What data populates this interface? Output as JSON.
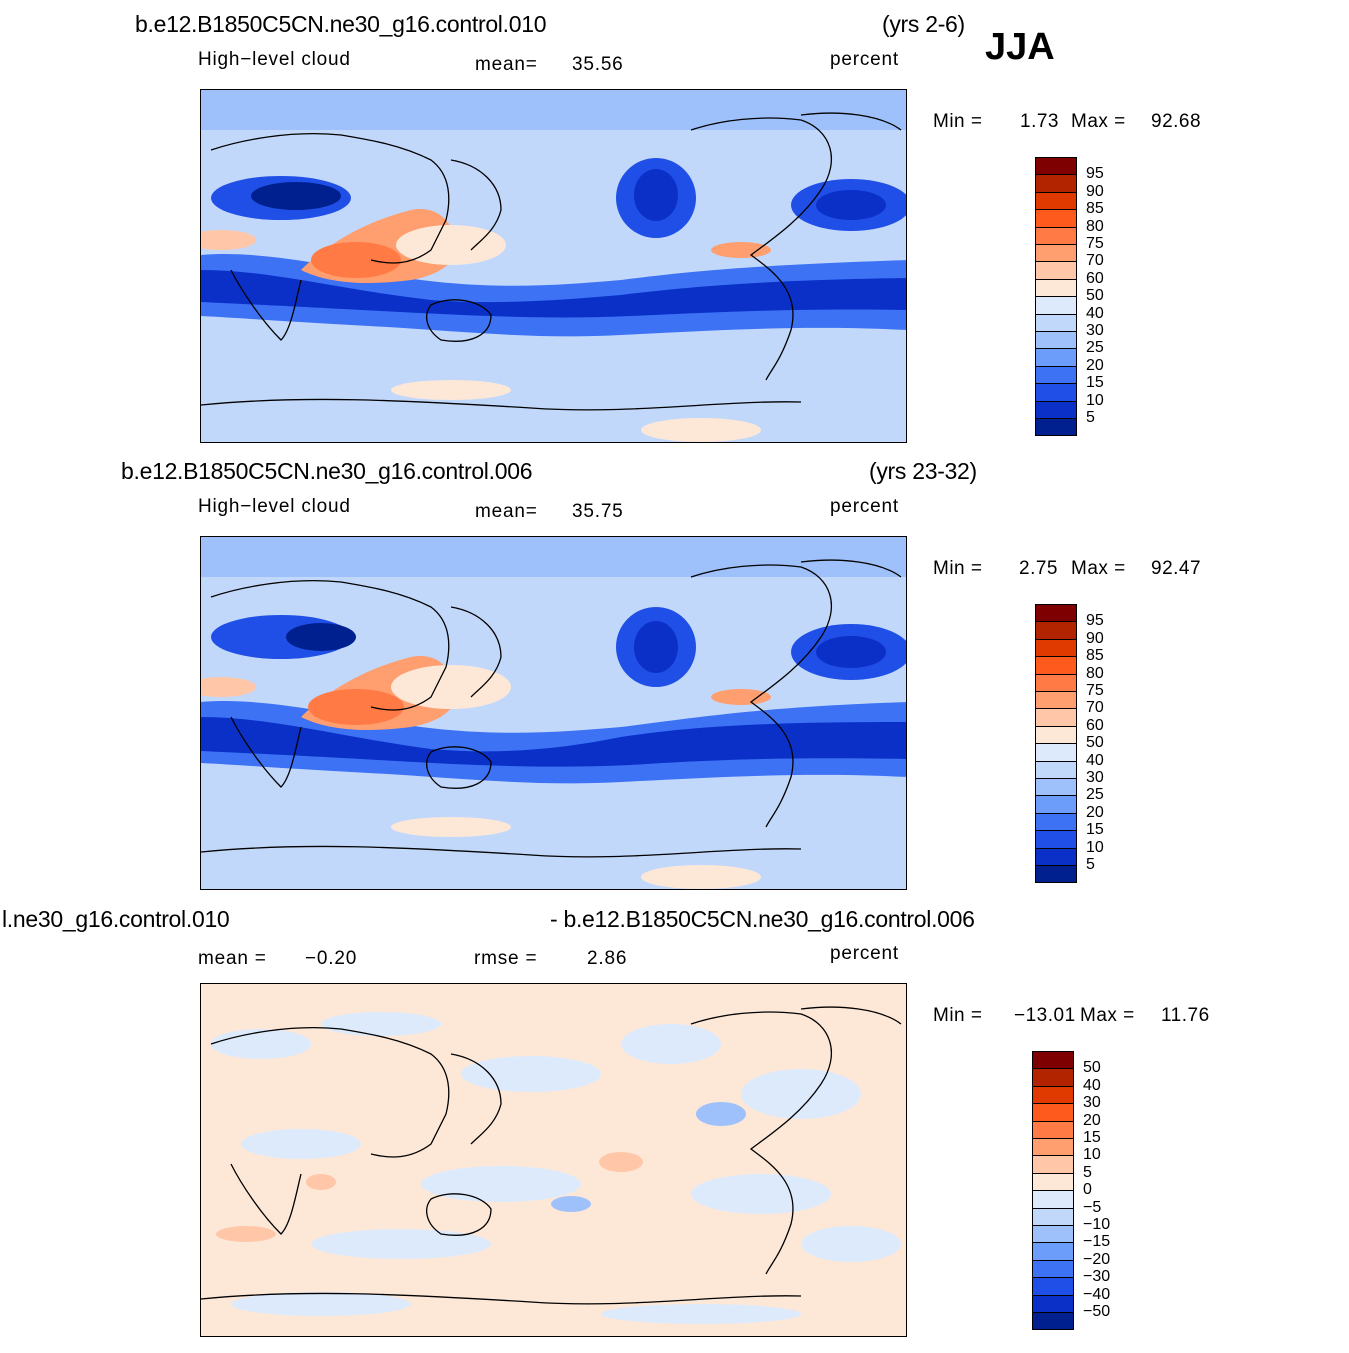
{
  "season": "JJA",
  "panels": [
    {
      "case": "b.e12.B1850C5CN.ne30_g16.control.010",
      "years": "(yrs 2-6)",
      "variable": "High−level  cloud",
      "stat1_label": "mean=",
      "stat1_value": "35.56",
      "units": "percent",
      "min_label": "Min  =",
      "min_value": "1.73",
      "max_label": "Max  =",
      "max_value": "92.68",
      "colorbar": [
        "95",
        "90",
        "85",
        "80",
        "75",
        "70",
        "60",
        "50",
        "40",
        "30",
        "25",
        "20",
        "15",
        "10",
        "5"
      ]
    },
    {
      "case": "b.e12.B1850C5CN.ne30_g16.control.006",
      "years": "(yrs 23-32)",
      "variable": "High−level  cloud",
      "stat1_label": "mean=",
      "stat1_value": "35.75",
      "units": "percent",
      "min_label": "Min  =",
      "min_value": "2.75",
      "max_label": "Max  =",
      "max_value": "92.47",
      "colorbar": [
        "95",
        "90",
        "85",
        "80",
        "75",
        "70",
        "60",
        "50",
        "40",
        "30",
        "25",
        "20",
        "15",
        "10",
        "5"
      ]
    },
    {
      "case_left": "l.ne30_g16.control.010",
      "case_right": "- b.e12.B1850C5CN.ne30_g16.control.006",
      "stat1_label": "mean  =",
      "stat1_value": "−0.20",
      "stat2_label": "rmse  =",
      "stat2_value": "2.86",
      "units": "percent",
      "min_label": "Min  =",
      "min_value": "−13.01",
      "max_label": "Max  =",
      "max_value": "11.76",
      "colorbar": [
        "50",
        "40",
        "30",
        "20",
        "15",
        "10",
        "5",
        "0",
        "−5",
        "−10",
        "−15",
        "−20",
        "−30",
        "−40",
        "−50"
      ]
    }
  ],
  "colors": {
    "scale": [
      "#7f0000",
      "#b22400",
      "#e03a00",
      "#ff5a1e",
      "#ff7a44",
      "#ff9e6e",
      "#ffc7a8",
      "#fde8d8",
      "#ddeafc",
      "#c2d8fb",
      "#9fc1fb",
      "#6d9dfa",
      "#3d72f5",
      "#1f4fe6",
      "#0a30c8",
      "#00208f"
    ]
  }
}
